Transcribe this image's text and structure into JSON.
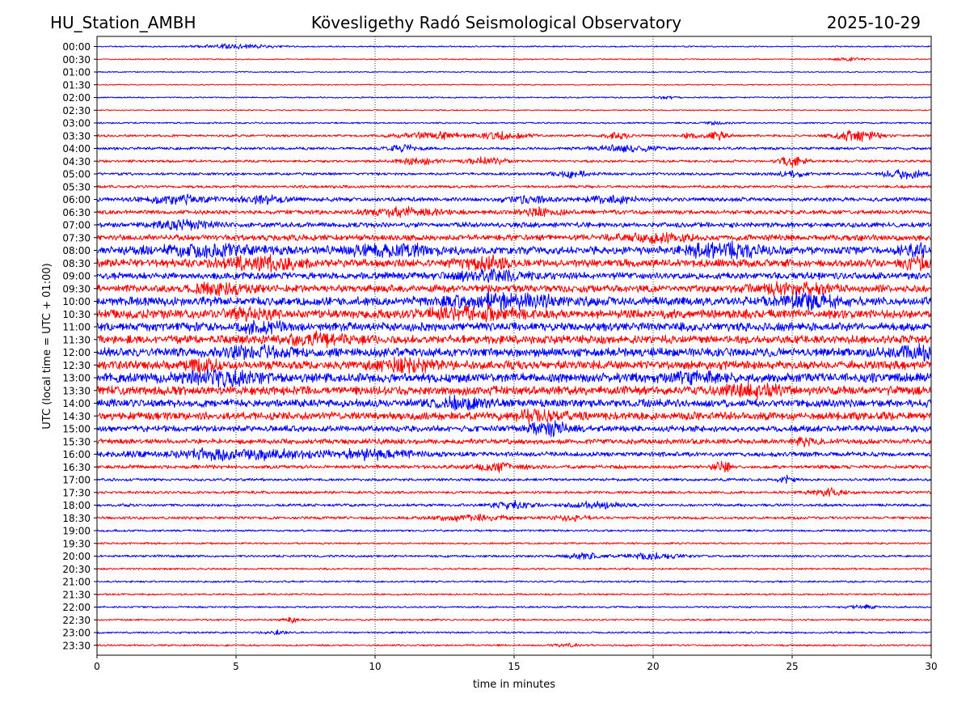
{
  "header": {
    "station": "HU_Station_AMBH",
    "observatory": "Kövesligethy Radó Seismological Observatory",
    "date": "2025-10-29"
  },
  "chart_data": {
    "type": "helicorder",
    "title": "Kövesligethy Radó Seismological Observatory",
    "xlabel": "time in minutes",
    "ylabel": "UTC (local time = UTC + 01:00)",
    "xlim": [
      0,
      30
    ],
    "x_ticks": [
      0,
      5,
      10,
      15,
      20,
      25,
      30
    ],
    "grid": "vertical dotted at x ticks",
    "trace_colors": [
      "#0000ff",
      "#ff0000"
    ],
    "rows": [
      {
        "label": "00:00",
        "noise": 0.3,
        "events": [
          {
            "t": 5.0,
            "amp": 1.0,
            "w": 1.2
          }
        ]
      },
      {
        "label": "00:30",
        "noise": 0.25,
        "events": [
          {
            "t": 27.0,
            "amp": 0.7,
            "w": 0.6
          }
        ]
      },
      {
        "label": "01:00",
        "noise": 0.25,
        "events": []
      },
      {
        "label": "01:30",
        "noise": 0.25,
        "events": []
      },
      {
        "label": "02:00",
        "noise": 0.3,
        "events": [
          {
            "t": 20.5,
            "amp": 0.6,
            "w": 0.4
          }
        ]
      },
      {
        "label": "02:30",
        "noise": 0.28,
        "events": []
      },
      {
        "label": "03:00",
        "noise": 0.35,
        "events": [
          {
            "t": 22.3,
            "amp": 0.8,
            "w": 0.4
          }
        ]
      },
      {
        "label": "03:30",
        "noise": 0.5,
        "events": [
          {
            "t": 12.0,
            "amp": 1.3,
            "w": 1.2
          },
          {
            "t": 14.5,
            "amp": 1.5,
            "w": 0.9
          },
          {
            "t": 18.7,
            "amp": 1.7,
            "w": 0.4
          },
          {
            "t": 21.3,
            "amp": 1.3,
            "w": 0.3
          },
          {
            "t": 22.3,
            "amp": 1.6,
            "w": 0.4
          },
          {
            "t": 27.3,
            "amp": 2.2,
            "w": 0.8
          }
        ]
      },
      {
        "label": "04:00",
        "noise": 0.6,
        "events": [
          {
            "t": 11.0,
            "amp": 1.2,
            "w": 0.6
          },
          {
            "t": 19.0,
            "amp": 1.1,
            "w": 1.2
          }
        ]
      },
      {
        "label": "04:30",
        "noise": 0.55,
        "events": [
          {
            "t": 11.5,
            "amp": 1.2,
            "w": 0.8
          },
          {
            "t": 14.0,
            "amp": 1.3,
            "w": 0.8
          },
          {
            "t": 25.0,
            "amp": 2.0,
            "w": 0.5
          }
        ]
      },
      {
        "label": "05:00",
        "noise": 0.6,
        "events": [
          {
            "t": 17.0,
            "amp": 1.4,
            "w": 0.6
          },
          {
            "t": 25.0,
            "amp": 1.5,
            "w": 0.4
          },
          {
            "t": 29.0,
            "amp": 1.6,
            "w": 0.8
          }
        ]
      },
      {
        "label": "05:30",
        "noise": 0.6,
        "events": []
      },
      {
        "label": "06:00",
        "noise": 0.9,
        "events": [
          {
            "t": 3.0,
            "amp": 1.5,
            "w": 1.2
          },
          {
            "t": 6.0,
            "amp": 1.5,
            "w": 0.8
          },
          {
            "t": 15.5,
            "amp": 1.4,
            "w": 0.8
          },
          {
            "t": 18.5,
            "amp": 1.3,
            "w": 1.0
          }
        ]
      },
      {
        "label": "06:30",
        "noise": 0.9,
        "events": [
          {
            "t": 11.0,
            "amp": 1.8,
            "w": 1.2
          },
          {
            "t": 16.0,
            "amp": 1.4,
            "w": 0.8
          }
        ]
      },
      {
        "label": "07:00",
        "noise": 1.1,
        "events": [
          {
            "t": 3.0,
            "amp": 1.4,
            "w": 1.0
          }
        ]
      },
      {
        "label": "07:30",
        "noise": 1.3,
        "events": [
          {
            "t": 20.0,
            "amp": 1.5,
            "w": 1.2
          }
        ]
      },
      {
        "label": "08:00",
        "noise": 1.7,
        "events": [
          {
            "t": 4.0,
            "amp": 1.8,
            "w": 2.0
          },
          {
            "t": 10.5,
            "amp": 2.0,
            "w": 1.5
          },
          {
            "t": 22.5,
            "amp": 2.2,
            "w": 1.5
          },
          {
            "t": 29.5,
            "amp": 2.0,
            "w": 0.5
          }
        ]
      },
      {
        "label": "08:30",
        "noise": 1.7,
        "events": [
          {
            "t": 6.0,
            "amp": 2.2,
            "w": 1.5
          },
          {
            "t": 14.0,
            "amp": 1.8,
            "w": 1.0
          },
          {
            "t": 29.5,
            "amp": 2.0,
            "w": 0.5
          }
        ]
      },
      {
        "label": "09:00",
        "noise": 1.5,
        "events": [
          {
            "t": 14.0,
            "amp": 1.8,
            "w": 1.2
          }
        ]
      },
      {
        "label": "09:30",
        "noise": 1.6,
        "events": [
          {
            "t": 4.5,
            "amp": 1.8,
            "w": 1.0
          },
          {
            "t": 25.0,
            "amp": 2.0,
            "w": 1.2
          }
        ]
      },
      {
        "label": "10:00",
        "noise": 1.9,
        "events": [
          {
            "t": 14.5,
            "amp": 2.2,
            "w": 2.0
          },
          {
            "t": 25.5,
            "amp": 2.2,
            "w": 1.2
          }
        ]
      },
      {
        "label": "10:30",
        "noise": 1.9,
        "events": [
          {
            "t": 13.5,
            "amp": 2.0,
            "w": 1.8
          },
          {
            "t": 5.5,
            "amp": 1.8,
            "w": 0.8
          }
        ]
      },
      {
        "label": "11:00",
        "noise": 1.8,
        "events": [
          {
            "t": 5.8,
            "amp": 2.0,
            "w": 0.8
          }
        ]
      },
      {
        "label": "11:30",
        "noise": 1.8,
        "events": [
          {
            "t": 8.0,
            "amp": 1.6,
            "w": 1.5
          }
        ]
      },
      {
        "label": "12:00",
        "noise": 1.9,
        "events": [
          {
            "t": 5.5,
            "amp": 2.0,
            "w": 1.2
          },
          {
            "t": 29.5,
            "amp": 2.0,
            "w": 0.8
          }
        ]
      },
      {
        "label": "12:30",
        "noise": 1.9,
        "events": [
          {
            "t": 3.8,
            "amp": 2.2,
            "w": 0.5
          },
          {
            "t": 11.0,
            "amp": 2.2,
            "w": 1.0
          }
        ]
      },
      {
        "label": "13:00",
        "noise": 2.0,
        "events": [
          {
            "t": 4.5,
            "amp": 2.3,
            "w": 1.5
          },
          {
            "t": 21.5,
            "amp": 2.0,
            "w": 0.8
          }
        ]
      },
      {
        "label": "13:30",
        "noise": 1.9,
        "events": [
          {
            "t": 23.5,
            "amp": 2.2,
            "w": 1.2
          }
        ]
      },
      {
        "label": "14:00",
        "noise": 1.7,
        "events": [
          {
            "t": 13.0,
            "amp": 1.8,
            "w": 1.2
          }
        ]
      },
      {
        "label": "14:30",
        "noise": 1.7,
        "events": [
          {
            "t": 16.0,
            "amp": 2.0,
            "w": 1.0
          }
        ]
      },
      {
        "label": "15:00",
        "noise": 1.3,
        "events": [
          {
            "t": 16.3,
            "amp": 2.6,
            "w": 0.8
          }
        ]
      },
      {
        "label": "15:30",
        "noise": 1.1,
        "events": [
          {
            "t": 25.5,
            "amp": 1.3,
            "w": 0.4
          }
        ]
      },
      {
        "label": "16:00",
        "noise": 1.0,
        "events": [
          {
            "t": 5.0,
            "amp": 1.8,
            "w": 3.0
          },
          {
            "t": 10.0,
            "amp": 1.6,
            "w": 1.5
          }
        ]
      },
      {
        "label": "16:30",
        "noise": 0.8,
        "events": [
          {
            "t": 14.5,
            "amp": 1.6,
            "w": 0.8
          },
          {
            "t": 22.5,
            "amp": 2.2,
            "w": 0.3
          }
        ]
      },
      {
        "label": "17:00",
        "noise": 0.6,
        "events": [
          {
            "t": 24.8,
            "amp": 1.5,
            "w": 0.3
          }
        ]
      },
      {
        "label": "17:30",
        "noise": 0.6,
        "events": [
          {
            "t": 26.3,
            "amp": 1.5,
            "w": 0.6
          }
        ]
      },
      {
        "label": "18:00",
        "noise": 0.6,
        "events": [
          {
            "t": 15.0,
            "amp": 1.3,
            "w": 0.8
          },
          {
            "t": 18.0,
            "amp": 1.2,
            "w": 1.0
          }
        ]
      },
      {
        "label": "18:30",
        "noise": 0.6,
        "events": [
          {
            "t": 13.5,
            "amp": 1.3,
            "w": 1.2
          },
          {
            "t": 17.0,
            "amp": 1.1,
            "w": 0.6
          }
        ]
      },
      {
        "label": "19:00",
        "noise": 0.45,
        "events": []
      },
      {
        "label": "19:30",
        "noise": 0.4,
        "events": []
      },
      {
        "label": "20:00",
        "noise": 0.5,
        "events": [
          {
            "t": 17.5,
            "amp": 1.3,
            "w": 0.6
          },
          {
            "t": 20.0,
            "amp": 1.2,
            "w": 1.0
          }
        ]
      },
      {
        "label": "20:30",
        "noise": 0.4,
        "events": []
      },
      {
        "label": "21:00",
        "noise": 0.4,
        "events": []
      },
      {
        "label": "21:30",
        "noise": 0.4,
        "events": []
      },
      {
        "label": "22:00",
        "noise": 0.4,
        "events": [
          {
            "t": 27.5,
            "amp": 0.7,
            "w": 0.6
          }
        ]
      },
      {
        "label": "22:30",
        "noise": 0.4,
        "events": [
          {
            "t": 7.0,
            "amp": 1.0,
            "w": 0.3
          }
        ]
      },
      {
        "label": "23:00",
        "noise": 0.4,
        "events": [
          {
            "t": 6.5,
            "amp": 0.8,
            "w": 0.4
          }
        ]
      },
      {
        "label": "23:30",
        "noise": 0.4,
        "events": [
          {
            "t": 17.0,
            "amp": 0.6,
            "w": 0.6
          }
        ]
      }
    ]
  }
}
